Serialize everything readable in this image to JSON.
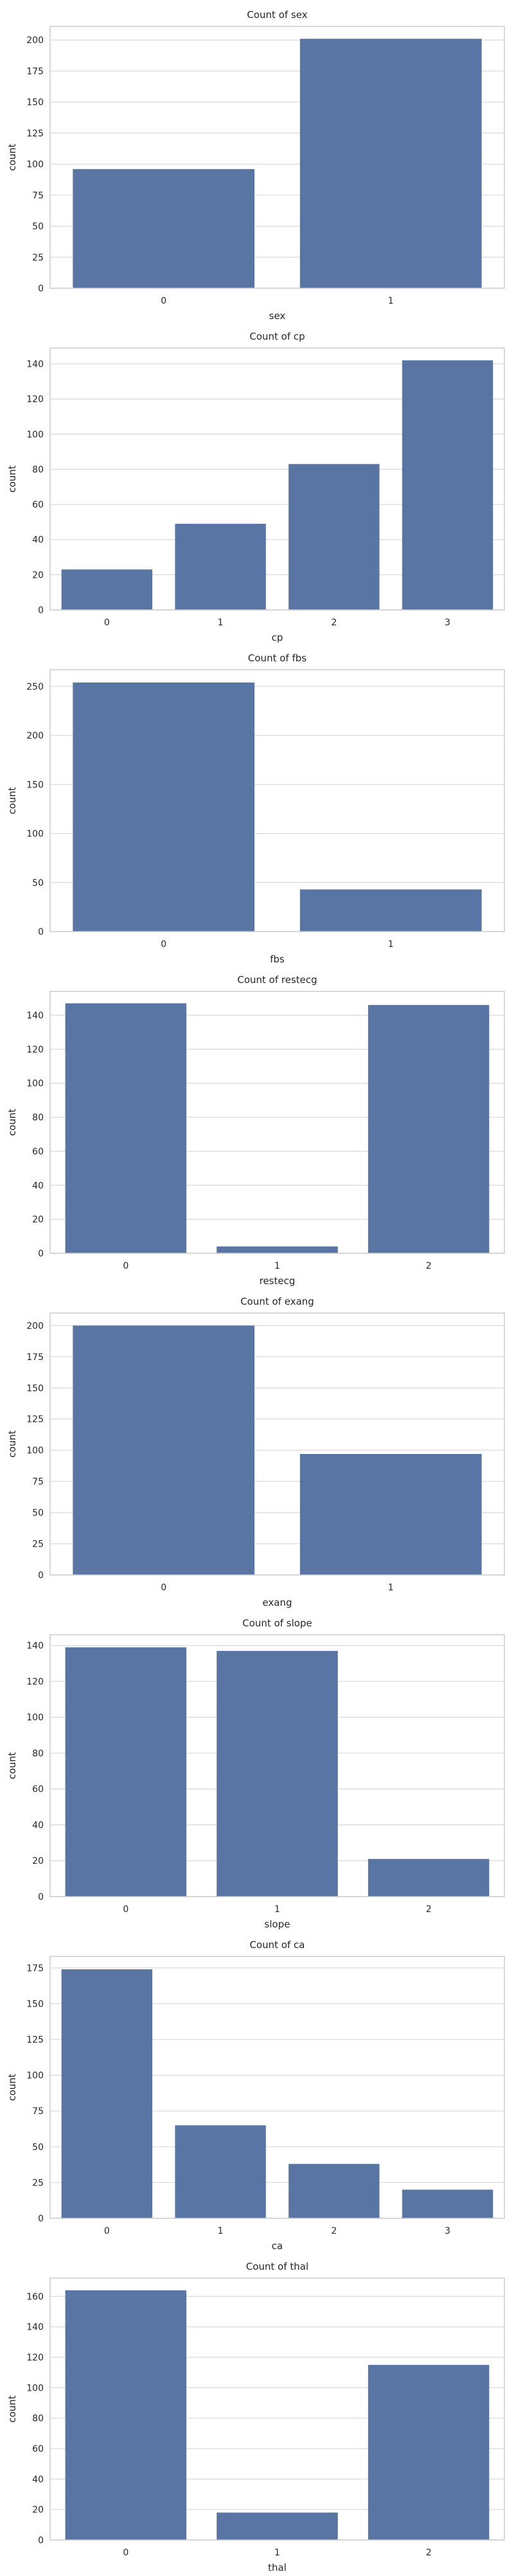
{
  "chart_data": [
    {
      "type": "bar",
      "title": "Count of sex",
      "xlabel": "sex",
      "ylabel": "count",
      "categories": [
        "0",
        "1"
      ],
      "values": [
        96,
        201
      ],
      "ylim": [
        0,
        211
      ],
      "yticks": [
        0,
        25,
        50,
        75,
        100,
        125,
        150,
        175,
        200
      ],
      "grid": true
    },
    {
      "type": "bar",
      "title": "Count of cp",
      "xlabel": "cp",
      "ylabel": "count",
      "categories": [
        "0",
        "1",
        "2",
        "3"
      ],
      "values": [
        23,
        49,
        83,
        142
      ],
      "ylim": [
        0,
        149
      ],
      "yticks": [
        0,
        20,
        40,
        60,
        80,
        100,
        120,
        140
      ],
      "grid": true
    },
    {
      "type": "bar",
      "title": "Count of fbs",
      "xlabel": "fbs",
      "ylabel": "count",
      "categories": [
        "0",
        "1"
      ],
      "values": [
        254,
        43
      ],
      "ylim": [
        0,
        267
      ],
      "yticks": [
        0,
        50,
        100,
        150,
        200,
        250
      ],
      "grid": true
    },
    {
      "type": "bar",
      "title": "Count of restecg",
      "xlabel": "restecg",
      "ylabel": "count",
      "categories": [
        "0",
        "1",
        "2"
      ],
      "values": [
        147,
        4,
        146
      ],
      "ylim": [
        0,
        154
      ],
      "yticks": [
        0,
        20,
        40,
        60,
        80,
        100,
        120,
        140
      ],
      "grid": true
    },
    {
      "type": "bar",
      "title": "Count of exang",
      "xlabel": "exang",
      "ylabel": "count",
      "categories": [
        "0",
        "1"
      ],
      "values": [
        200,
        97
      ],
      "ylim": [
        0,
        210
      ],
      "yticks": [
        0,
        25,
        50,
        75,
        100,
        125,
        150,
        175,
        200
      ],
      "grid": true
    },
    {
      "type": "bar",
      "title": "Count of slope",
      "xlabel": "slope",
      "ylabel": "count",
      "categories": [
        "0",
        "1",
        "2"
      ],
      "values": [
        139,
        137,
        21
      ],
      "ylim": [
        0,
        146
      ],
      "yticks": [
        0,
        20,
        40,
        60,
        80,
        100,
        120,
        140
      ],
      "grid": true
    },
    {
      "type": "bar",
      "title": "Count of ca",
      "xlabel": "ca",
      "ylabel": "count",
      "categories": [
        "0",
        "1",
        "2",
        "3"
      ],
      "values": [
        174,
        65,
        38,
        20
      ],
      "ylim": [
        0,
        183
      ],
      "yticks": [
        0,
        25,
        50,
        75,
        100,
        125,
        150,
        175
      ],
      "grid": true
    },
    {
      "type": "bar",
      "title": "Count of thal",
      "xlabel": "thal",
      "ylabel": "count",
      "categories": [
        "0",
        "1",
        "2"
      ],
      "values": [
        164,
        18,
        115
      ],
      "ylim": [
        0,
        172
      ],
      "yticks": [
        0,
        20,
        40,
        60,
        80,
        100,
        120,
        140,
        160
      ],
      "grid": true
    }
  ],
  "colors": {
    "bar": "#5875a4",
    "grid": "#d9d9d9",
    "frame": "#cccccc",
    "text": "#262626"
  }
}
